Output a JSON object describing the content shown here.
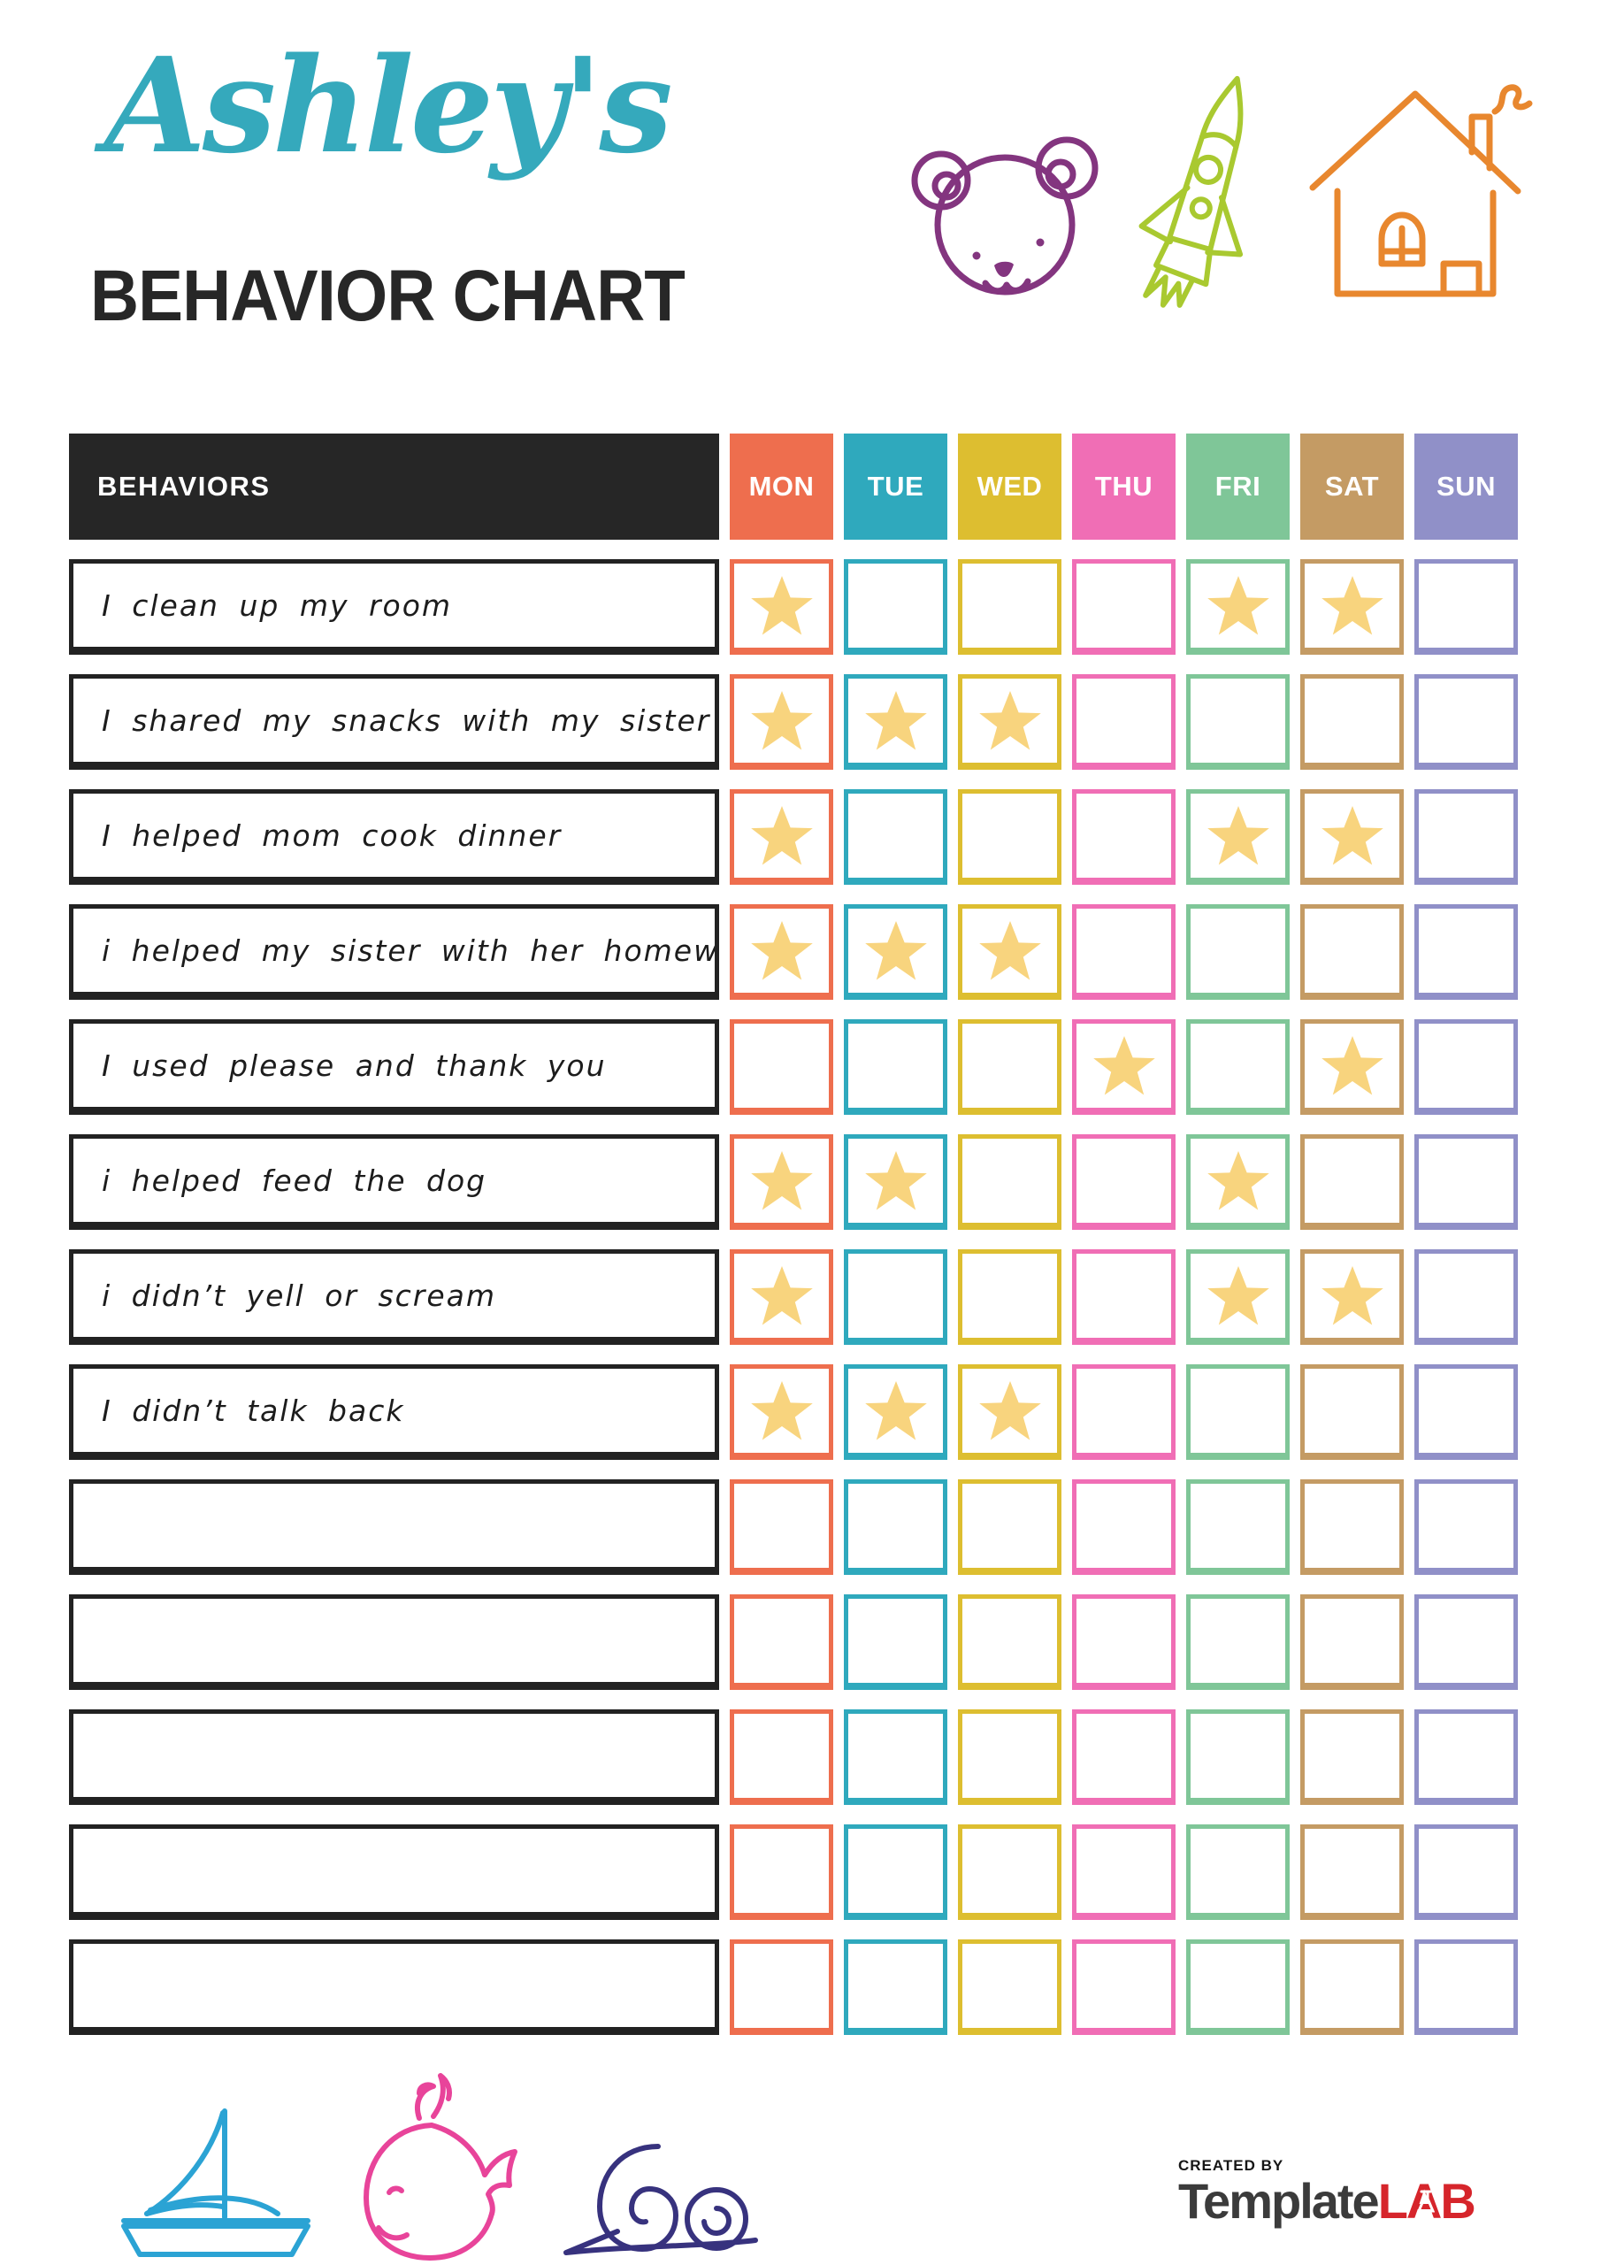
{
  "header": {
    "script_title": "Ashley's",
    "main_title": "BEHAVIOR CHART"
  },
  "colors": {
    "script_title": "#35A9BC",
    "main_title": "#272727",
    "behaviors_header_bg": "#262626",
    "row_border": "#222222",
    "star": "#F8D47E",
    "bear": "#83357F",
    "rocket": "#A9C930",
    "house": "#E8872E",
    "sailboat": "#2BA3D4",
    "whale": "#E8449A",
    "snail": "#37327E",
    "brand_text": "#3B3B3B",
    "brand_accent": "#D6252B"
  },
  "table": {
    "behaviors_header": "BEHAVIORS",
    "days": [
      {
        "label": "MON",
        "color": "#EE6E4E"
      },
      {
        "label": "TUE",
        "color": "#2FA9BD"
      },
      {
        "label": "WED",
        "color": "#DDBE30"
      },
      {
        "label": "THU",
        "color": "#F06EB5"
      },
      {
        "label": "FRI",
        "color": "#7FC698"
      },
      {
        "label": "SAT",
        "color": "#C49B64"
      },
      {
        "label": "SUN",
        "color": "#9090C8"
      }
    ],
    "rows": [
      {
        "label": "I clean up my room",
        "stars": [
          1,
          0,
          0,
          0,
          1,
          1,
          0
        ]
      },
      {
        "label": "I shared my snacks with my sister",
        "stars": [
          1,
          1,
          1,
          0,
          0,
          0,
          0
        ]
      },
      {
        "label": "I helped mom cook dinner",
        "stars": [
          1,
          0,
          0,
          0,
          1,
          1,
          0
        ]
      },
      {
        "label": "i helped my sister with her homework",
        "stars": [
          1,
          1,
          1,
          0,
          0,
          0,
          0
        ]
      },
      {
        "label": "I used please and thank you",
        "stars": [
          0,
          0,
          0,
          1,
          0,
          1,
          0
        ]
      },
      {
        "label": "i helped feed the dog",
        "stars": [
          1,
          1,
          0,
          0,
          1,
          0,
          0
        ]
      },
      {
        "label": "i didn’t yell or scream",
        "stars": [
          1,
          0,
          0,
          0,
          1,
          1,
          0
        ]
      },
      {
        "label": "I didn’t talk back",
        "stars": [
          1,
          1,
          1,
          0,
          0,
          0,
          0
        ]
      },
      {
        "label": "",
        "stars": [
          0,
          0,
          0,
          0,
          0,
          0,
          0
        ]
      },
      {
        "label": "",
        "stars": [
          0,
          0,
          0,
          0,
          0,
          0,
          0
        ]
      },
      {
        "label": "",
        "stars": [
          0,
          0,
          0,
          0,
          0,
          0,
          0
        ]
      },
      {
        "label": "",
        "stars": [
          0,
          0,
          0,
          0,
          0,
          0,
          0
        ]
      },
      {
        "label": "",
        "stars": [
          0,
          0,
          0,
          0,
          0,
          0,
          0
        ]
      }
    ]
  },
  "footer": {
    "created_by": "CREATED BY",
    "brand_primary": "Template",
    "brand_accent": "LAB"
  }
}
